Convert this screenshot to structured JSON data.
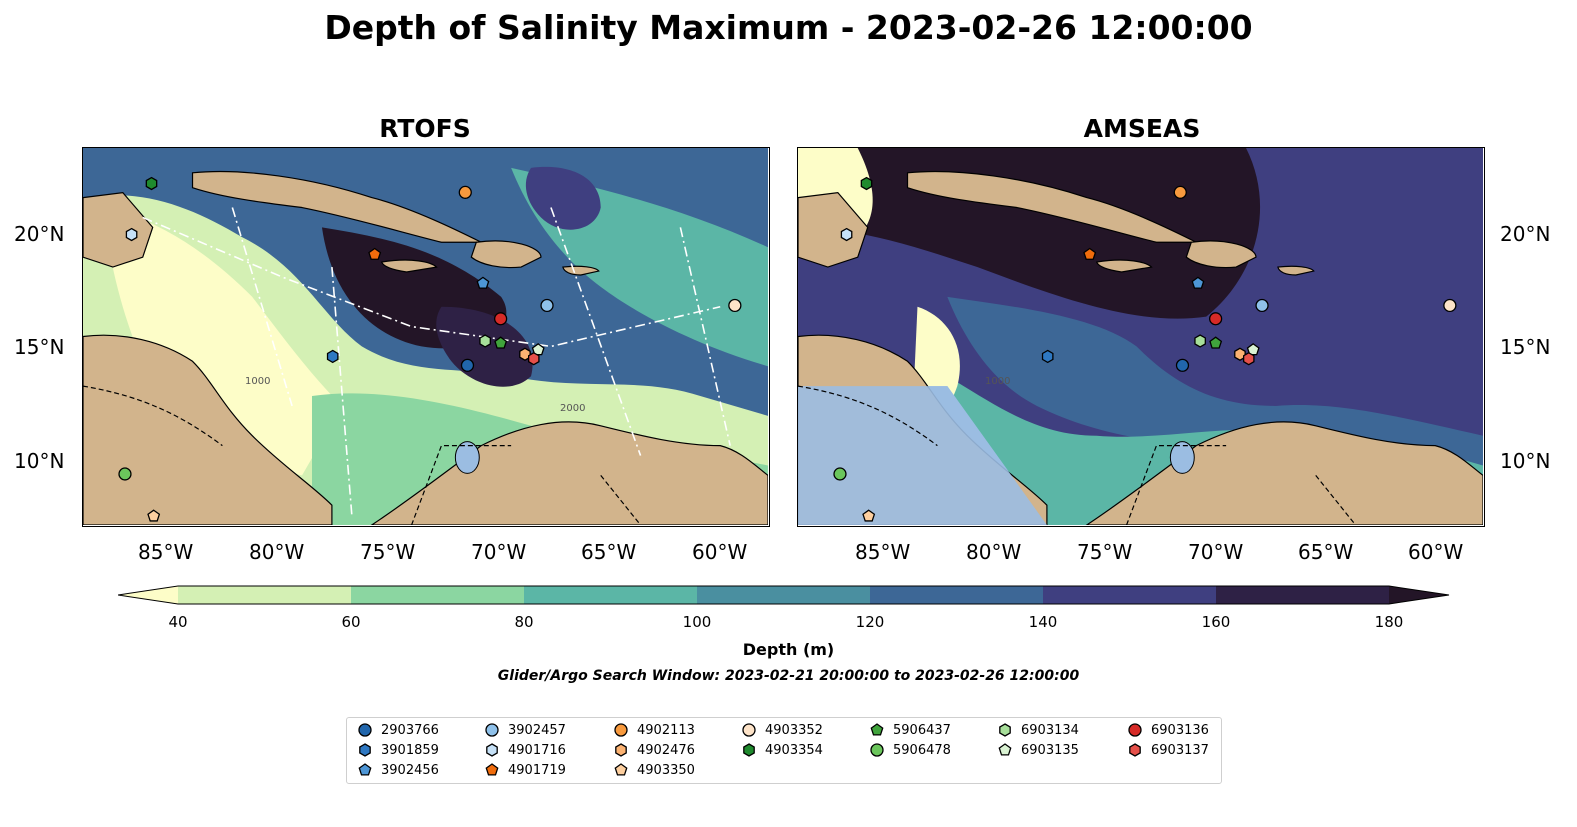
{
  "title": "Depth of Salinity Maximum - 2023-02-26 12:00:00",
  "panels": [
    {
      "id": "rtofs",
      "title": "RTOFS"
    },
    {
      "id": "amseas",
      "title": "AMSEAS"
    }
  ],
  "axes": {
    "lon_ticks": [
      "85°W",
      "80°W",
      "75°W",
      "70°W",
      "65°W",
      "60°W"
    ],
    "lat_ticks": [
      "20°N",
      "15°N",
      "10°N"
    ],
    "contour_labels": [
      "1000",
      "2000",
      "1000"
    ]
  },
  "colorbar": {
    "label": "Depth (m)",
    "ticks": [
      "40",
      "60",
      "80",
      "100",
      "120",
      "140",
      "160",
      "180"
    ],
    "colors": [
      "#fdfdc8",
      "#d4f0b4",
      "#8bd6a1",
      "#5bb6a6",
      "#4a8fa0",
      "#3d6796",
      "#3f3f80",
      "#2e2145",
      "#231527"
    ]
  },
  "colors": {
    "land": "#d2b48c",
    "lake": "#9bbde2",
    "marker_edge": "#000000"
  },
  "subtitle": "Glider/Argo Search Window: 2023-02-21 20:00:00 to 2023-02-26 12:00:00",
  "legend": [
    {
      "id": "2903766",
      "shape": "circle",
      "color": "#2166ac"
    },
    {
      "id": "3901859",
      "shape": "hexagon",
      "color": "#2e78c2"
    },
    {
      "id": "3902456",
      "shape": "pentagon",
      "color": "#4d96d6"
    },
    {
      "id": "3902457",
      "shape": "circle",
      "color": "#8fc1ea"
    },
    {
      "id": "4901716",
      "shape": "hexagon",
      "color": "#c6e1f7"
    },
    {
      "id": "4901719",
      "shape": "pentagon",
      "color": "#f06c0c"
    },
    {
      "id": "4902113",
      "shape": "circle",
      "color": "#f89a3e"
    },
    {
      "id": "4902476",
      "shape": "hexagon",
      "color": "#fbb272"
    },
    {
      "id": "4903350",
      "shape": "pentagon",
      "color": "#fdcf9f"
    },
    {
      "id": "4903352",
      "shape": "circle",
      "color": "#fde3c8"
    },
    {
      "id": "4903354",
      "shape": "hexagon",
      "color": "#1f8a2e"
    },
    {
      "id": "5906437",
      "shape": "pentagon",
      "color": "#40a43c"
    },
    {
      "id": "5906478",
      "shape": "circle",
      "color": "#6bc65c"
    },
    {
      "id": "6903134",
      "shape": "hexagon",
      "color": "#a7df9a"
    },
    {
      "id": "6903135",
      "shape": "pentagon",
      "color": "#daf3d3"
    },
    {
      "id": "6903136",
      "shape": "circle",
      "color": "#d62a27"
    },
    {
      "id": "6903137",
      "shape": "hexagon",
      "color": "#e5504a"
    }
  ],
  "floats": [
    {
      "id": "4903354",
      "lon": -85.9,
      "lat": 22.4
    },
    {
      "id": "4901716",
      "lon": -86.8,
      "lat": 20.1
    },
    {
      "id": "4902113",
      "lon": -71.7,
      "lat": 22.0
    },
    {
      "id": "4901719",
      "lon": -75.8,
      "lat": 19.2
    },
    {
      "id": "3902456",
      "lon": -70.9,
      "lat": 17.9
    },
    {
      "id": "3902457",
      "lon": -68.0,
      "lat": 16.9
    },
    {
      "id": "4903352",
      "lon": -59.5,
      "lat": 16.9
    },
    {
      "id": "6903136",
      "lon": -70.1,
      "lat": 16.3
    },
    {
      "id": "6903134",
      "lon": -70.8,
      "lat": 15.3
    },
    {
      "id": "5906437",
      "lon": -70.1,
      "lat": 15.2
    },
    {
      "id": "4902476",
      "lon": -69.0,
      "lat": 14.7
    },
    {
      "id": "6903135",
      "lon": -68.4,
      "lat": 14.9
    },
    {
      "id": "6903137",
      "lon": -68.6,
      "lat": 14.5
    },
    {
      "id": "3901859",
      "lon": -77.7,
      "lat": 14.6
    },
    {
      "id": "2903766",
      "lon": -71.6,
      "lat": 14.2
    },
    {
      "id": "5906478",
      "lon": -87.1,
      "lat": 9.3
    },
    {
      "id": "4903350",
      "lon": -85.8,
      "lat": 7.4
    }
  ],
  "map_extent": {
    "lon": [
      -89,
      -58
    ],
    "lat": [
      7,
      24
    ]
  }
}
